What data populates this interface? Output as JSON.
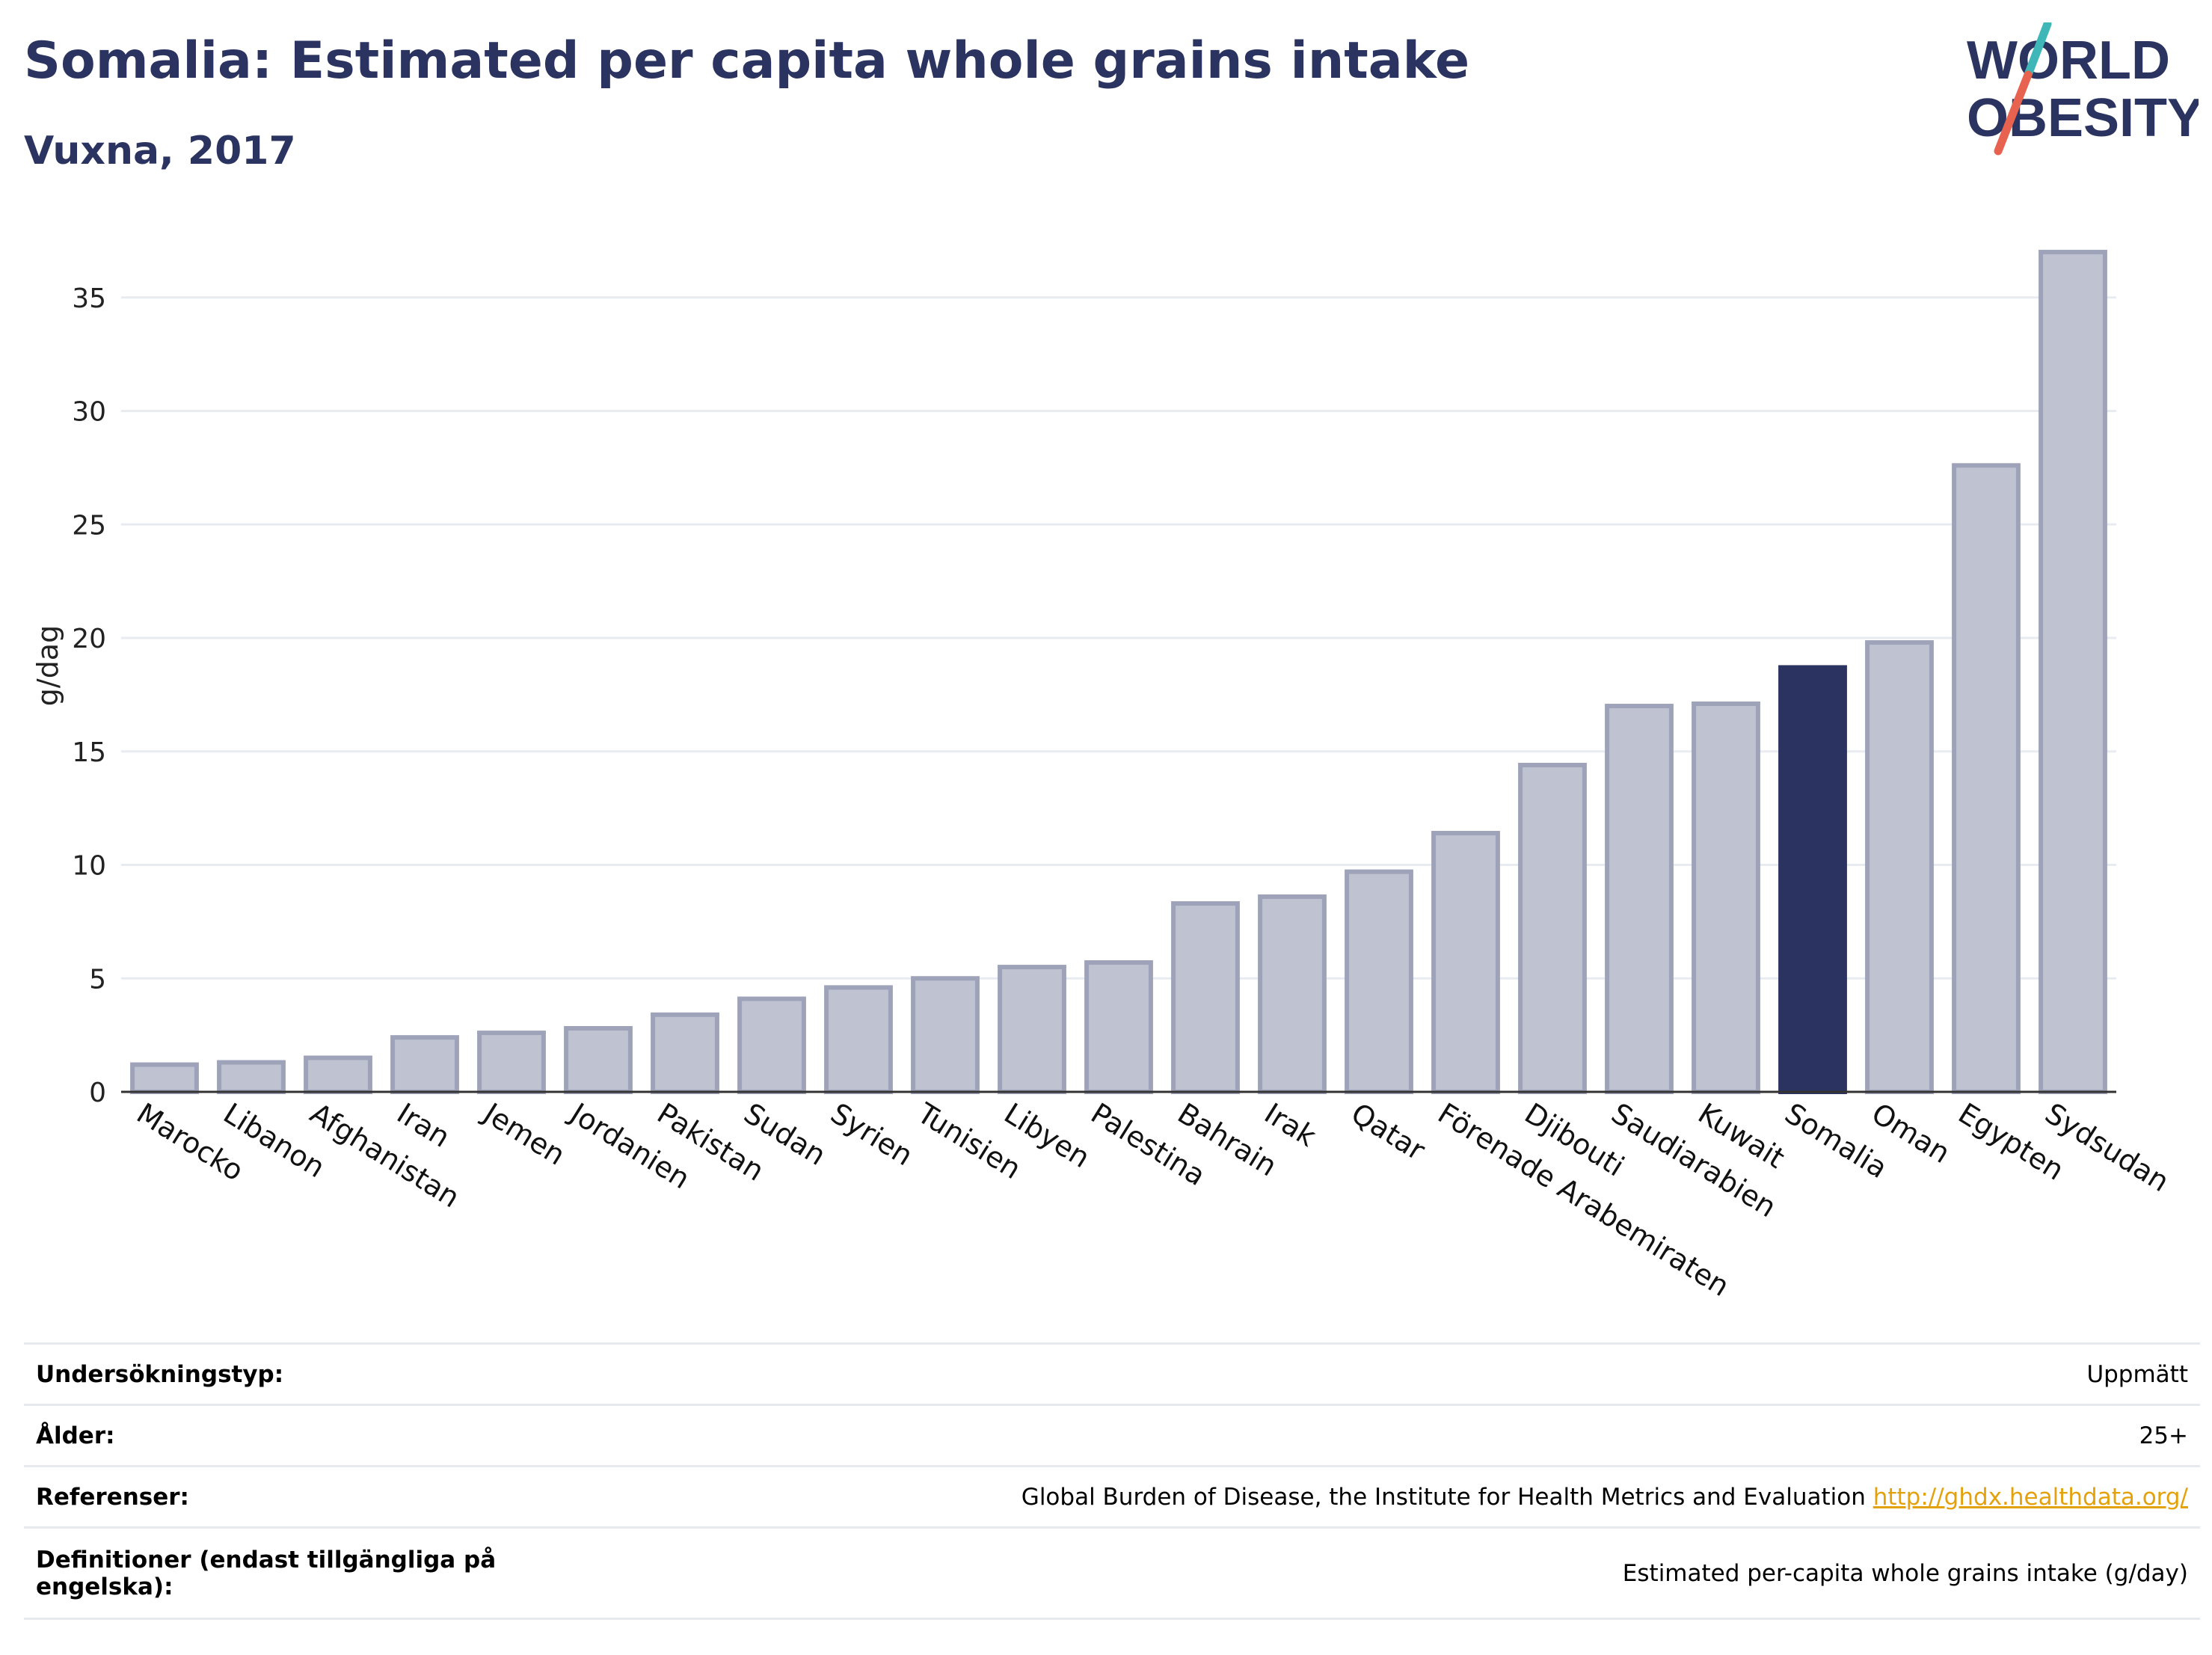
{
  "header": {
    "title": "Somalia: Estimated per capita whole grains intake",
    "subtitle": "Vuxna, 2017"
  },
  "logo": {
    "line1": "WORLD",
    "line2": "OBESITY"
  },
  "colors": {
    "highlight": "#2b3460",
    "bar": "#bfc2d0",
    "bar_border": "#9ea3ba",
    "grid": "#e8ebf0",
    "title": "#2b3460"
  },
  "chart_data": {
    "type": "bar",
    "ylabel": "g/dag",
    "ylim": [
      0,
      38
    ],
    "yticks": [
      0,
      5,
      10,
      15,
      20,
      25,
      30,
      35
    ],
    "grid": true,
    "highlight": "Somalia",
    "categories": [
      "Marocko",
      "Libanon",
      "Afghanistan",
      "Iran",
      "Jemen",
      "Jordanien",
      "Pakistan",
      "Sudan",
      "Syrien",
      "Tunisien",
      "Libyen",
      "Palestina",
      "Bahrain",
      "Irak",
      "Qatar",
      "Förenade Arabemiraten",
      "Djibouti",
      "Saudiarabien",
      "Kuwait",
      "Somalia",
      "Oman",
      "Egypten",
      "Sydsudan"
    ],
    "values": [
      1.2,
      1.3,
      1.5,
      2.4,
      2.6,
      2.8,
      3.4,
      4.1,
      4.6,
      5.0,
      5.5,
      5.7,
      8.3,
      8.6,
      9.7,
      11.4,
      14.4,
      17.0,
      17.1,
      18.7,
      19.8,
      27.6,
      37.0
    ]
  },
  "meta": [
    {
      "key": "Undersökningstyp:",
      "value": "Uppmätt"
    },
    {
      "key": "Ålder:",
      "value": "25+"
    },
    {
      "key": "Referenser:",
      "value": "Global Burden of Disease, the Institute for Health Metrics and Evaluation",
      "link": "http://ghdx.healthdata.org/"
    },
    {
      "key": "Definitioner (endast tillgängliga på engelska):",
      "value": "Estimated per-capita whole grains intake (g/day)"
    }
  ]
}
